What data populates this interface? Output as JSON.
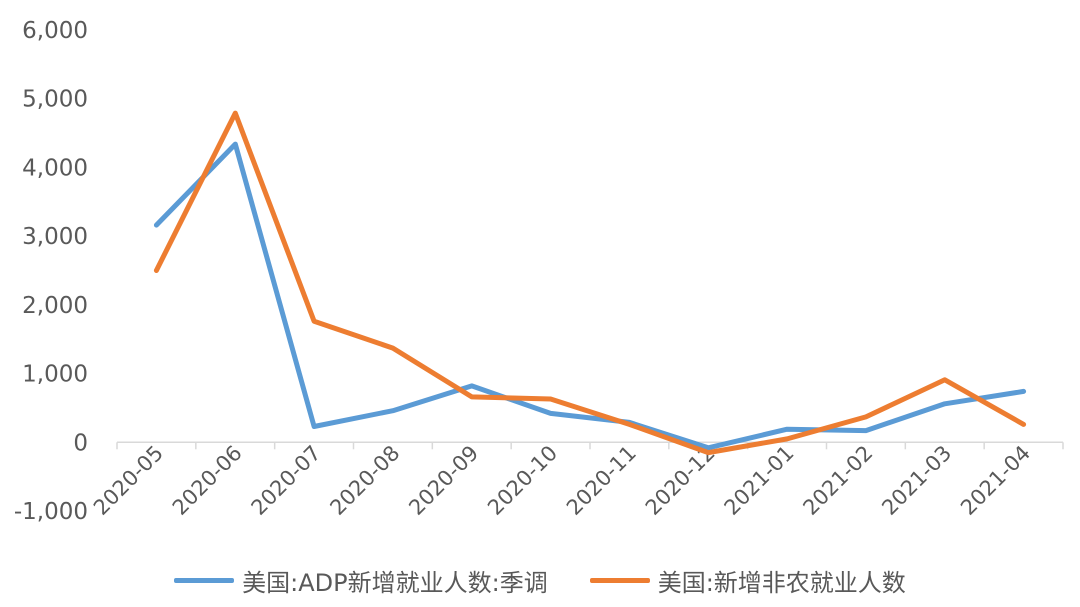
{
  "chart_data": {
    "type": "line",
    "title": "",
    "xlabel": "",
    "ylabel": "",
    "categories": [
      "2020-05",
      "2020-06",
      "2020-07",
      "2020-08",
      "2020-09",
      "2020-10",
      "2020-11",
      "2020-12",
      "2021-01",
      "2021-02",
      "2021-03",
      "2021-04"
    ],
    "ylim": [
      -1000,
      6000
    ],
    "yticks": [
      -1000,
      0,
      1000,
      2000,
      3000,
      4000,
      5000,
      6000
    ],
    "ytick_labels": [
      "-1,000",
      "0",
      "1,000",
      "2,000",
      "3,000",
      "4,000",
      "5,000",
      "6,000"
    ],
    "grid": false,
    "legend_position": "bottom",
    "series": [
      {
        "name": "美国:ADP新增就业人数:季调",
        "color": "#5B9BD5",
        "values": [
          3160,
          4340,
          230,
          460,
          820,
          420,
          290,
          -80,
          190,
          170,
          560,
          740
        ]
      },
      {
        "name": "美国:新增非农就业人数",
        "color": "#ED7D31",
        "values": [
          2500,
          4790,
          1760,
          1370,
          660,
          630,
          260,
          -150,
          50,
          370,
          910,
          260
        ]
      }
    ]
  }
}
